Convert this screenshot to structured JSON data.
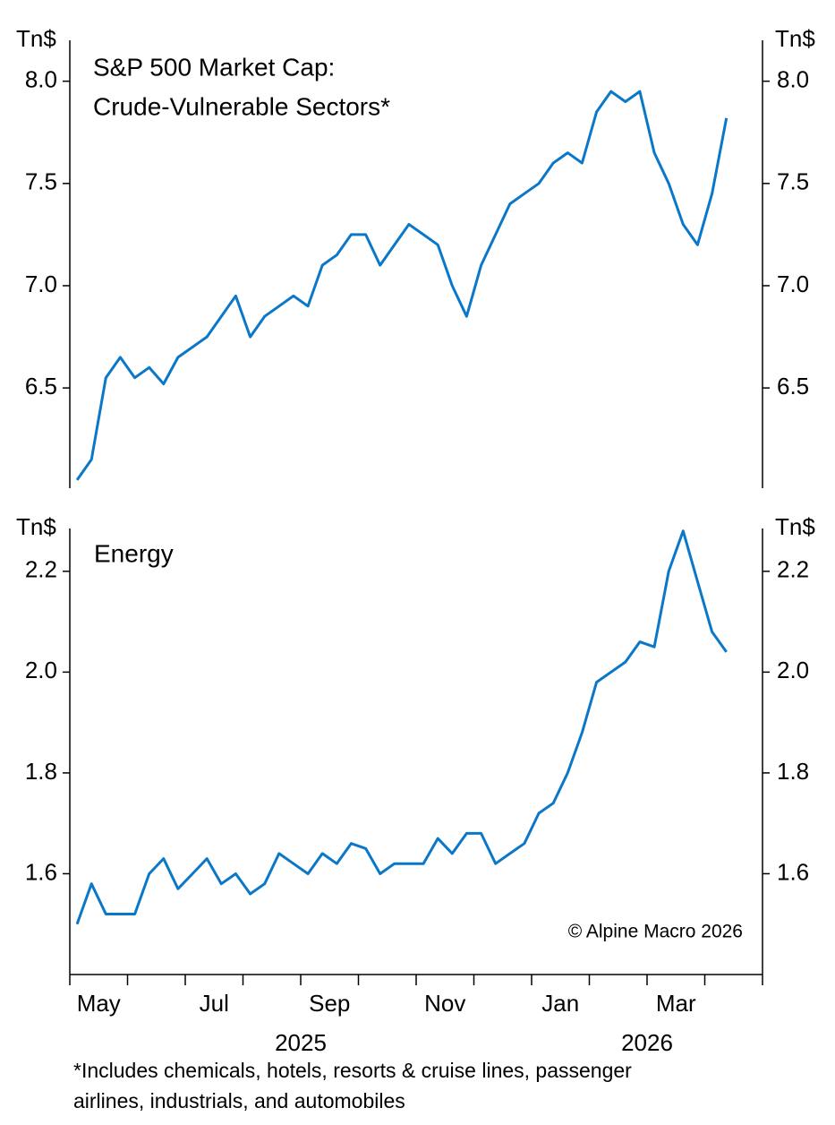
{
  "chart_data": [
    {
      "type": "line",
      "title": [
        "S&P 500 Market Cap:",
        "Crude-Vulnerable Sectors*"
      ],
      "y_unit": "Tn$",
      "ylim": [
        6.01,
        8.2
      ],
      "yticks": [
        6.5,
        {
          "value": 7,
          "label": "7.0"
        },
        7.5,
        {
          "value": 8,
          "label": "8.0"
        }
      ],
      "series": [
        {
          "color": "#0a77c9",
          "values": [
            6.05,
            6.15,
            6.55,
            6.65,
            6.55,
            6.6,
            6.52,
            6.65,
            6.7,
            6.75,
            6.85,
            6.95,
            6.75,
            6.85,
            6.9,
            6.95,
            6.9,
            7.1,
            7.15,
            7.25,
            7.25,
            7.1,
            7.2,
            7.3,
            7.25,
            7.2,
            7.0,
            6.85,
            7.1,
            7.25,
            7.4,
            7.45,
            7.5,
            7.6,
            7.65,
            7.6,
            7.85,
            7.95,
            7.9,
            7.95,
            7.65,
            7.5,
            7.3,
            7.2,
            7.45,
            7.82,
            null,
            null
          ]
        }
      ]
    },
    {
      "type": "line",
      "title": "Energy",
      "y_unit": "Tn$",
      "ylim": [
        1.4,
        2.285
      ],
      "yticks": [
        1.6,
        1.8,
        {
          "value": 2,
          "label": "2.0"
        },
        2.2
      ],
      "categories": [
        null,
        "May",
        null,
        null,
        null,
        null,
        null,
        null,
        null,
        "Jul",
        null,
        null,
        null,
        null,
        null,
        null,
        null,
        "Sep",
        null,
        null,
        null,
        null,
        null,
        null,
        null,
        "Nov",
        null,
        null,
        null,
        null,
        null,
        null,
        null,
        "Jan",
        null,
        null,
        null,
        null,
        null,
        null,
        null,
        "Mar",
        null,
        null,
        null,
        null,
        null,
        null
      ],
      "x_groups": [
        {
          "label": "2025",
          "count": 32
        },
        {
          "label": "2026",
          "count": 16
        }
      ],
      "source": "© Alpine Macro 2026",
      "series": [
        {
          "color": "#0a77c9",
          "values": [
            1.5,
            1.58,
            1.52,
            1.52,
            1.52,
            1.6,
            1.63,
            1.57,
            1.6,
            1.63,
            1.58,
            1.6,
            1.56,
            1.58,
            1.64,
            1.62,
            1.6,
            1.64,
            1.62,
            1.66,
            1.65,
            1.6,
            1.62,
            1.62,
            1.62,
            1.67,
            1.64,
            1.68,
            1.68,
            1.62,
            1.64,
            1.66,
            1.72,
            1.74,
            1.8,
            1.88,
            1.98,
            2.0,
            2.02,
            2.06,
            2.05,
            2.2,
            2.28,
            2.18,
            2.08,
            2.04,
            null,
            null
          ]
        }
      ]
    }
  ],
  "footnote": [
    "*Includes chemicals, hotels, resorts & cruise lines, passenger",
    "airlines, industrials, and automobiles"
  ]
}
